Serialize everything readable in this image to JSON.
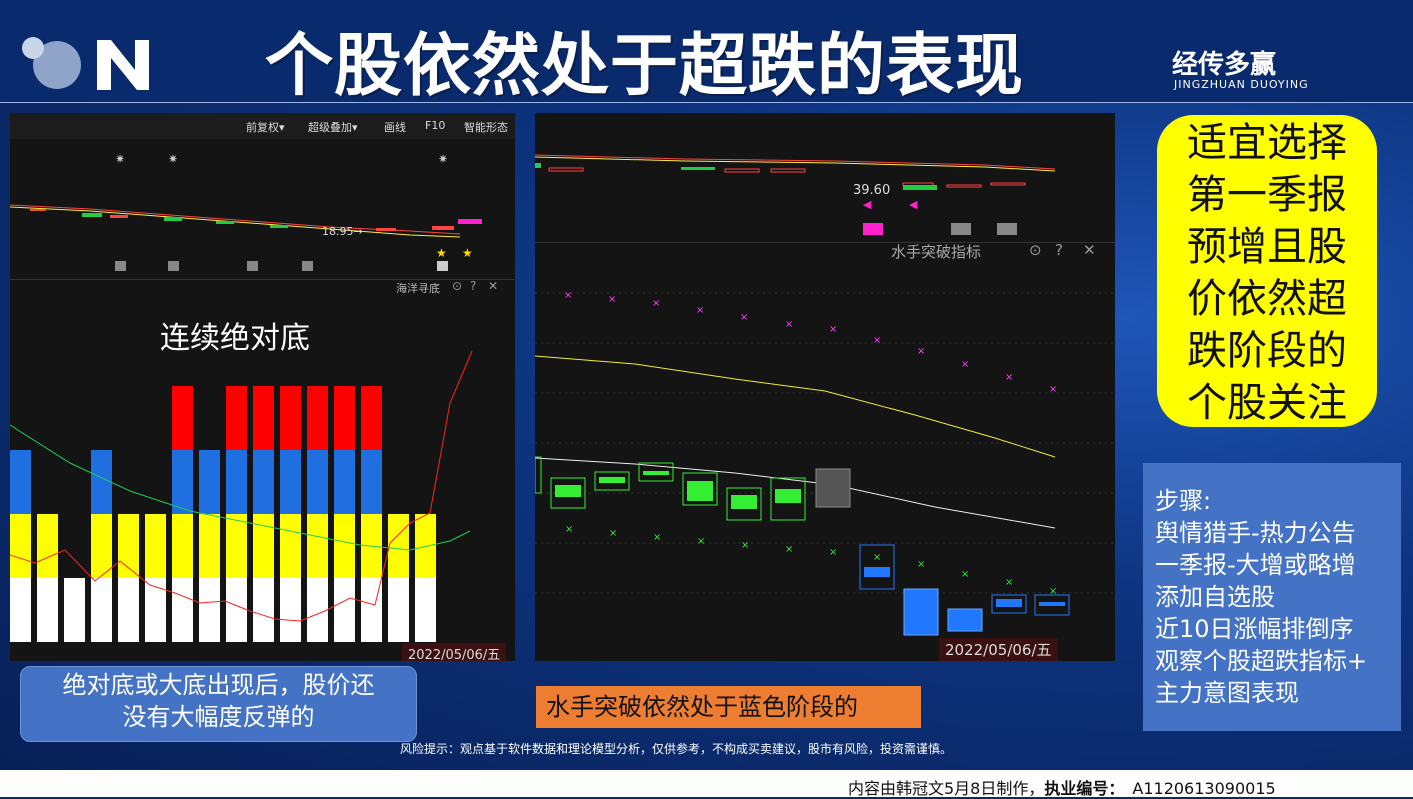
{
  "title": "个股依然处于超跌的表现",
  "brand": {
    "name": "经传多赢",
    "sub": "JINGZHUAN DUOYING"
  },
  "left_panel": {
    "toolbar": [
      "前复权▾",
      "超级叠加▾",
      "画线",
      "F10",
      "智能形态"
    ],
    "price_label": "18.95→",
    "indicator_name": "海洋寻底",
    "overlay_label": "连续绝对底",
    "date": "2022/05/06/五"
  },
  "right_panel": {
    "price_label": "39.60",
    "indicator_name": "水手突破指标",
    "date": "2022/05/06/五"
  },
  "callout": [
    "适宜选择",
    "第一季报",
    "预增且股",
    "价依然超",
    "跌阶段的",
    "个股关注"
  ],
  "steps": [
    "步骤:",
    "舆情猎手-热力公告",
    "一季报-大增或略增",
    "添加自选股",
    "近10日涨幅排倒序",
    "观察个股超跌指标+",
    "主力意图表现"
  ],
  "note_blue": [
    "绝对底或大底出现后，股价还",
    "没有大幅度反弹的"
  ],
  "note_orange": "水手突破依然处于蓝色阶段的",
  "risk": "风险提示：观点基于软件数据和理论模型分析，仅供参考，不构成买卖建议，股市有风险，投资需谨慎。",
  "footer": {
    "made_by": "内容由韩冠文5月8日制作，",
    "license_label": "执业编号：",
    "license_no": "A1120613090015"
  },
  "colors": {
    "red": "#ff0000",
    "blue": "#1f6fe0",
    "yellow": "#ffff00",
    "white": "#ffffff",
    "accent": "#ed7d31"
  },
  "left_bars": {
    "white": [
      1,
      1,
      1,
      1,
      1,
      1,
      1,
      1,
      1,
      1,
      1,
      1,
      1,
      1,
      1,
      1
    ],
    "yellow": [
      1,
      1,
      0,
      1,
      1,
      1,
      1,
      1,
      1,
      1,
      1,
      1,
      1,
      1,
      1,
      1
    ],
    "blue": [
      1,
      0,
      0,
      1,
      0,
      0,
      1,
      1,
      1,
      1,
      1,
      1,
      1,
      1,
      0,
      0
    ],
    "red": [
      0,
      0,
      0,
      0,
      0,
      0,
      1,
      0,
      1,
      1,
      1,
      1,
      1,
      1,
      0,
      0
    ]
  }
}
